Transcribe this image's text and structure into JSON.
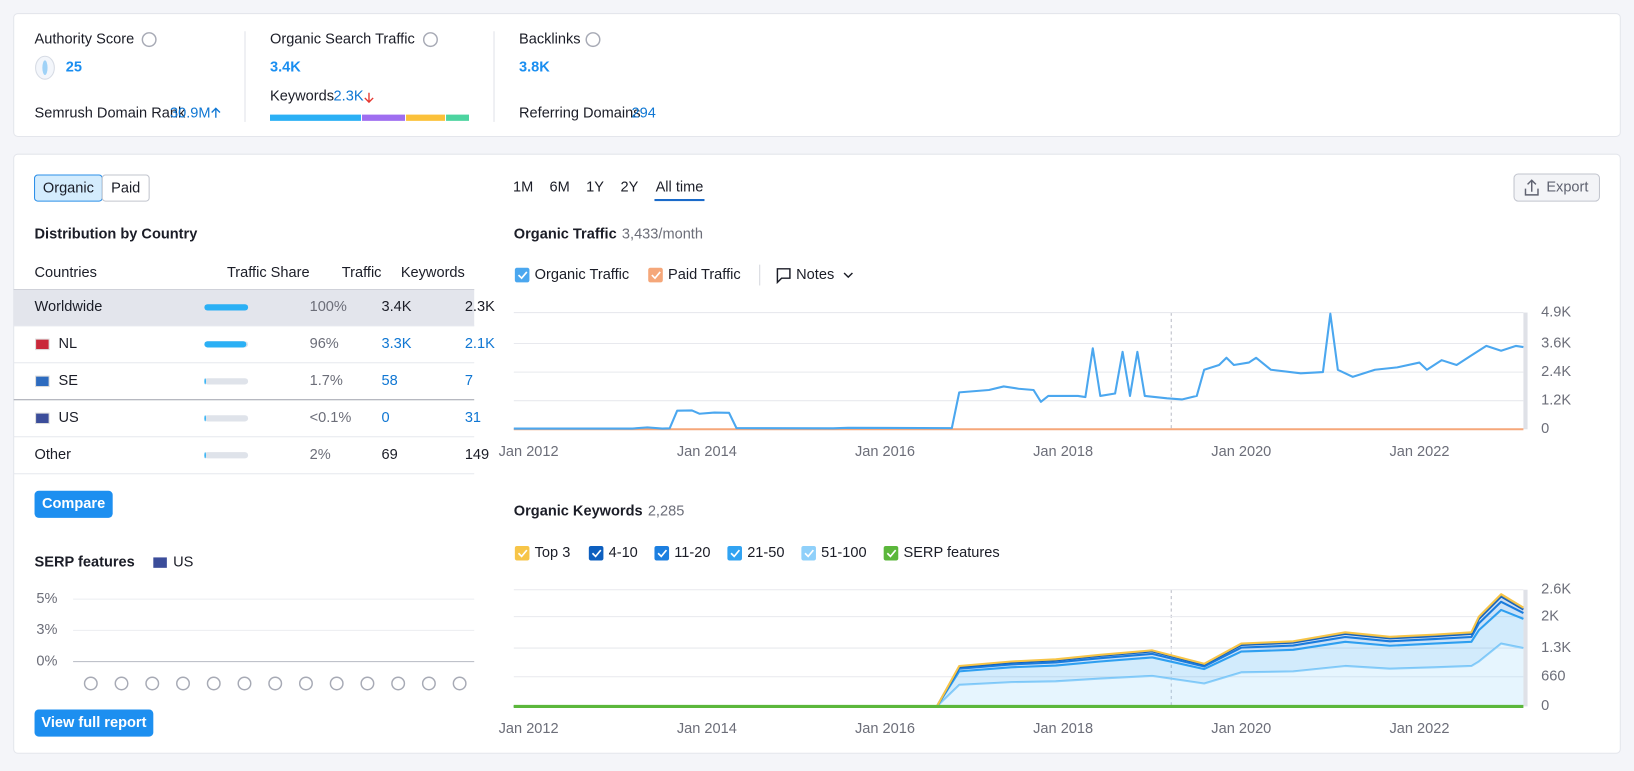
{
  "summary": {
    "authority": {
      "label": "Authority Score",
      "value": "25",
      "rank_label": "Semrush Domain Rank",
      "rank_value": "30.9M"
    },
    "traffic": {
      "label": "Organic Search Traffic",
      "value": "3.4K",
      "keywords_label": "Keywords",
      "keywords_value": "2.3K",
      "keyword_bar": [
        {
          "value": 46,
          "color": "#2bb0f5"
        },
        {
          "value": 22,
          "color": "#9f6ef0"
        },
        {
          "value": 20,
          "color": "#fbc13a"
        },
        {
          "value": 12,
          "color": "#4dd4a0"
        }
      ]
    },
    "backlinks": {
      "label": "Backlinks",
      "value": "3.8K",
      "ref_label": "Referring Domains",
      "ref_value": "294"
    }
  },
  "tabs": [
    "Organic",
    "Paid"
  ],
  "periods": [
    "1M",
    "6M",
    "1Y",
    "2Y",
    "All time"
  ],
  "export": "Export",
  "distribution": {
    "title": "Distribution by Country",
    "columns": [
      "Countries",
      "Traffic Share",
      "Traffic",
      "Keywords"
    ],
    "rows": [
      {
        "country": "Worldwide",
        "share": 100,
        "share_label": "100%",
        "traffic": "3.4K",
        "keywords": "2.3K"
      },
      {
        "country": "NL",
        "share": 96,
        "share_label": "96%",
        "traffic": "3.3K",
        "keywords": "2.1K"
      },
      {
        "country": "SE",
        "share": 1.7,
        "share_label": "1.7%",
        "traffic": "58",
        "keywords": "7"
      },
      {
        "country": "US",
        "share": 0.05,
        "share_label": "<0.1%",
        "traffic": "0",
        "keywords": "31"
      },
      {
        "country": "Other",
        "share": 2,
        "share_label": "2%",
        "traffic": "69",
        "keywords": "149"
      }
    ]
  },
  "compare": "Compare",
  "serp": {
    "title": "SERP features",
    "country": "US",
    "ylim": [
      0,
      5
    ],
    "yticks": [
      {
        "value": 0,
        "label": "0%"
      },
      {
        "value": 2.5,
        "label": "3%"
      },
      {
        "value": 5,
        "label": "5%"
      }
    ],
    "button": "View full report"
  },
  "traffic_chart": {
    "type": "line",
    "title": "Organic Traffic",
    "subtitle": "3,433/month",
    "notes": "Notes",
    "xlim": [
      "2011-11",
      "2023-03"
    ],
    "xticks": [
      {
        "value": "2012-01",
        "label": "Jan 2012"
      },
      {
        "value": "2014-01",
        "label": "Jan 2014"
      },
      {
        "value": "2016-01",
        "label": "Jan 2016"
      },
      {
        "value": "2018-01",
        "label": "Jan 2018"
      },
      {
        "value": "2020-01",
        "label": "Jan 2020"
      },
      {
        "value": "2022-01",
        "label": "Jan 2022"
      }
    ],
    "ylim": [
      0,
      4900
    ],
    "yticks": [
      0,
      {
        "value": 1200,
        "label": "1.2K"
      },
      {
        "value": 2400,
        "label": "2.4K"
      },
      {
        "value": 3600,
        "label": "3.6K"
      },
      {
        "value": 4900,
        "label": "4.9K"
      }
    ],
    "grid": true,
    "series": [
      {
        "name": "Organic Traffic",
        "color": "#4ba7ef",
        "x": [
          "2011-11",
          "2013-03",
          "2013-05",
          "2013-07",
          "2013-08",
          "2013-09",
          "2013-11",
          "2013-12",
          "2014-02",
          "2014-04",
          "2014-05",
          "2015-06",
          "2015-08",
          "2016-10",
          "2016-11",
          "2017-03",
          "2017-05",
          "2017-07",
          "2017-09",
          "2017-10",
          "2017-11",
          "2018-03",
          "2018-04",
          "2018-05",
          "2018-06",
          "2018-08",
          "2018-09",
          "2018-10",
          "2018-11",
          "2018-12",
          "2019-03",
          "2019-05",
          "2019-07",
          "2019-08",
          "2019-10",
          "2019-11",
          "2019-12",
          "2020-02",
          "2020-03",
          "2020-05",
          "2020-09",
          "2020-12",
          "2021-01",
          "2021-02",
          "2021-04",
          "2021-07",
          "2021-10",
          "2022-01",
          "2022-02",
          "2022-04",
          "2022-06",
          "2022-08",
          "2022-10",
          "2022-12",
          "2023-02",
          "2023-03"
        ],
        "values": [
          30,
          30,
          80,
          30,
          40,
          780,
          790,
          650,
          700,
          690,
          50,
          40,
          60,
          50,
          1550,
          1650,
          1800,
          1700,
          1650,
          1150,
          1400,
          1400,
          1350,
          3400,
          1400,
          1500,
          3250,
          1400,
          3250,
          1400,
          1300,
          1250,
          1400,
          2500,
          2700,
          3000,
          2700,
          2800,
          3000,
          2500,
          2350,
          2400,
          4850,
          2500,
          2200,
          2500,
          2600,
          2800,
          2500,
          2900,
          2700,
          3100,
          3500,
          3300,
          3500,
          3450
        ]
      },
      {
        "name": "Paid Traffic",
        "color": "#f5a77a",
        "x": [
          "2011-11",
          "2023-03"
        ],
        "values": [
          0,
          0
        ]
      }
    ]
  },
  "keywords_chart": {
    "type": "area",
    "stacked": true,
    "title": "Organic Keywords",
    "subtitle": "2,285",
    "xlim": [
      "2011-11",
      "2023-03"
    ],
    "xticks": [
      {
        "value": "2012-01",
        "label": "Jan 2012"
      },
      {
        "value": "2014-01",
        "label": "Jan 2014"
      },
      {
        "value": "2016-01",
        "label": "Jan 2016"
      },
      {
        "value": "2018-01",
        "label": "Jan 2018"
      },
      {
        "value": "2020-01",
        "label": "Jan 2020"
      },
      {
        "value": "2022-01",
        "label": "Jan 2022"
      }
    ],
    "ylim": [
      0,
      2600
    ],
    "yticks": [
      0,
      660,
      {
        "value": 1300,
        "label": "1.3K"
      },
      {
        "value": 2000,
        "label": "2K"
      },
      {
        "value": 2600,
        "label": "2.6K"
      }
    ],
    "grid": true,
    "series": [
      {
        "name": "Top 3",
        "color": "#f7c548",
        "x": [
          "2011-11",
          "2016-08",
          "2016-11",
          "2017-06",
          "2017-12",
          "2018-06",
          "2019-01",
          "2019-08",
          "2020-01",
          "2020-08",
          "2021-03",
          "2021-09",
          "2022-03",
          "2022-08",
          "2022-09",
          "2022-12",
          "2023-03"
        ],
        "values": [
          0,
          0,
          20,
          20,
          25,
          25,
          25,
          20,
          30,
          30,
          35,
          35,
          35,
          35,
          50,
          50,
          40
        ]
      },
      {
        "name": "4-10",
        "color": "#0d5fbf",
        "x": [
          "2011-11",
          "2016-08",
          "2016-11",
          "2017-06",
          "2017-12",
          "2018-06",
          "2019-01",
          "2019-08",
          "2020-01",
          "2020-08",
          "2021-03",
          "2021-09",
          "2022-03",
          "2022-08",
          "2022-09",
          "2022-12",
          "2023-03"
        ],
        "values": [
          0,
          0,
          40,
          45,
          45,
          50,
          55,
          40,
          60,
          65,
          70,
          65,
          65,
          70,
          100,
          120,
          80
        ]
      },
      {
        "name": "11-20",
        "color": "#1c7fe0",
        "x": [
          "2011-11",
          "2016-08",
          "2016-11",
          "2017-06",
          "2017-12",
          "2018-06",
          "2019-01",
          "2019-08",
          "2020-01",
          "2020-08",
          "2021-03",
          "2021-09",
          "2022-03",
          "2022-08",
          "2022-09",
          "2022-12",
          "2023-03"
        ],
        "values": [
          0,
          0,
          60,
          65,
          70,
          75,
          80,
          60,
          90,
          95,
          105,
          100,
          100,
          105,
          150,
          180,
          130
        ]
      },
      {
        "name": "21-50",
        "color": "#31a3f2",
        "x": [
          "2011-11",
          "2016-08",
          "2016-11",
          "2017-06",
          "2017-12",
          "2018-06",
          "2019-01",
          "2019-08",
          "2020-01",
          "2020-08",
          "2021-03",
          "2021-09",
          "2022-03",
          "2022-08",
          "2022-09",
          "2022-12",
          "2023-03"
        ],
        "values": [
          0,
          0,
          300,
          330,
          350,
          380,
          410,
          320,
          460,
          480,
          540,
          510,
          530,
          540,
          700,
          750,
          650
        ]
      },
      {
        "name": "51-100",
        "color": "#8fd0fa",
        "x": [
          "2011-11",
          "2016-08",
          "2016-11",
          "2017-06",
          "2017-12",
          "2018-06",
          "2019-01",
          "2019-08",
          "2020-01",
          "2020-08",
          "2021-03",
          "2021-09",
          "2022-03",
          "2022-08",
          "2022-09",
          "2022-12",
          "2023-03"
        ],
        "values": [
          0,
          0,
          480,
          540,
          560,
          620,
          680,
          510,
          760,
          780,
          900,
          840,
          870,
          900,
          1000,
          1400,
          1300
        ]
      },
      {
        "name": "SERP features",
        "color": "#5bb73b",
        "x": [
          "2011-11",
          "2023-03"
        ],
        "values": [
          0,
          0
        ]
      }
    ]
  }
}
